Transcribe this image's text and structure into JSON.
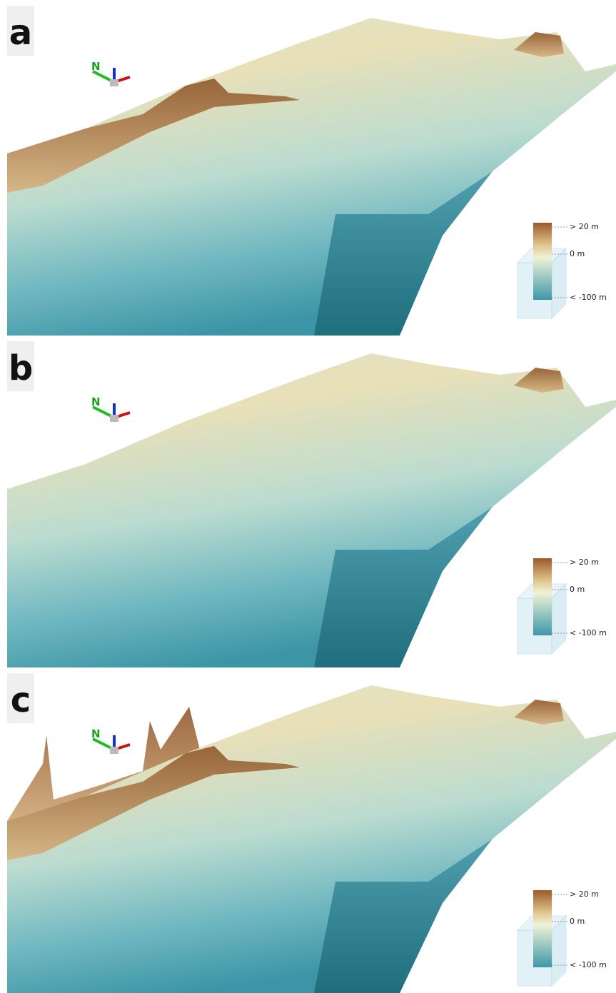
{
  "panels": [
    {
      "label": "a",
      "compass": "N",
      "legend": [
        "> 20 m",
        "0 m",
        "< -100 m"
      ]
    },
    {
      "label": "b",
      "compass": "N",
      "legend": [
        "> 20 m",
        "0 m",
        "< -100 m"
      ]
    },
    {
      "label": "c",
      "compass": "N",
      "legend": [
        "> 20 m",
        "0 m",
        "< -100 m"
      ]
    }
  ]
}
